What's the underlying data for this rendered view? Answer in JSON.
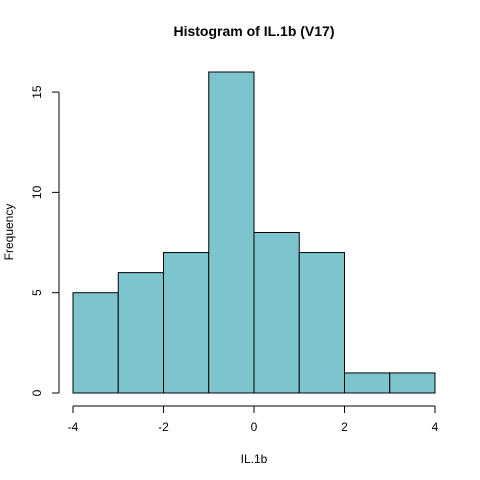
{
  "chart_data": {
    "type": "bar",
    "title": "Histogram of IL.1b (V17)",
    "xlabel": "IL.1b",
    "ylabel": "Frequency",
    "bins": [
      {
        "start": -4,
        "end": -3,
        "count": 5
      },
      {
        "start": -3,
        "end": -2,
        "count": 6
      },
      {
        "start": -2,
        "end": -1,
        "count": 7
      },
      {
        "start": -1,
        "end": 0,
        "count": 16
      },
      {
        "start": 0,
        "end": 1,
        "count": 8
      },
      {
        "start": 1,
        "end": 2,
        "count": 7
      },
      {
        "start": 2,
        "end": 3,
        "count": 1
      },
      {
        "start": 3,
        "end": 4,
        "count": 1
      }
    ],
    "xlim": [
      -4,
      4
    ],
    "ylim": [
      0,
      16
    ],
    "x_ticks": [
      -4,
      -2,
      0,
      2,
      4
    ],
    "y_ticks": [
      0,
      5,
      10,
      15
    ],
    "bar_color": "#7cc5cf",
    "grid": false
  }
}
